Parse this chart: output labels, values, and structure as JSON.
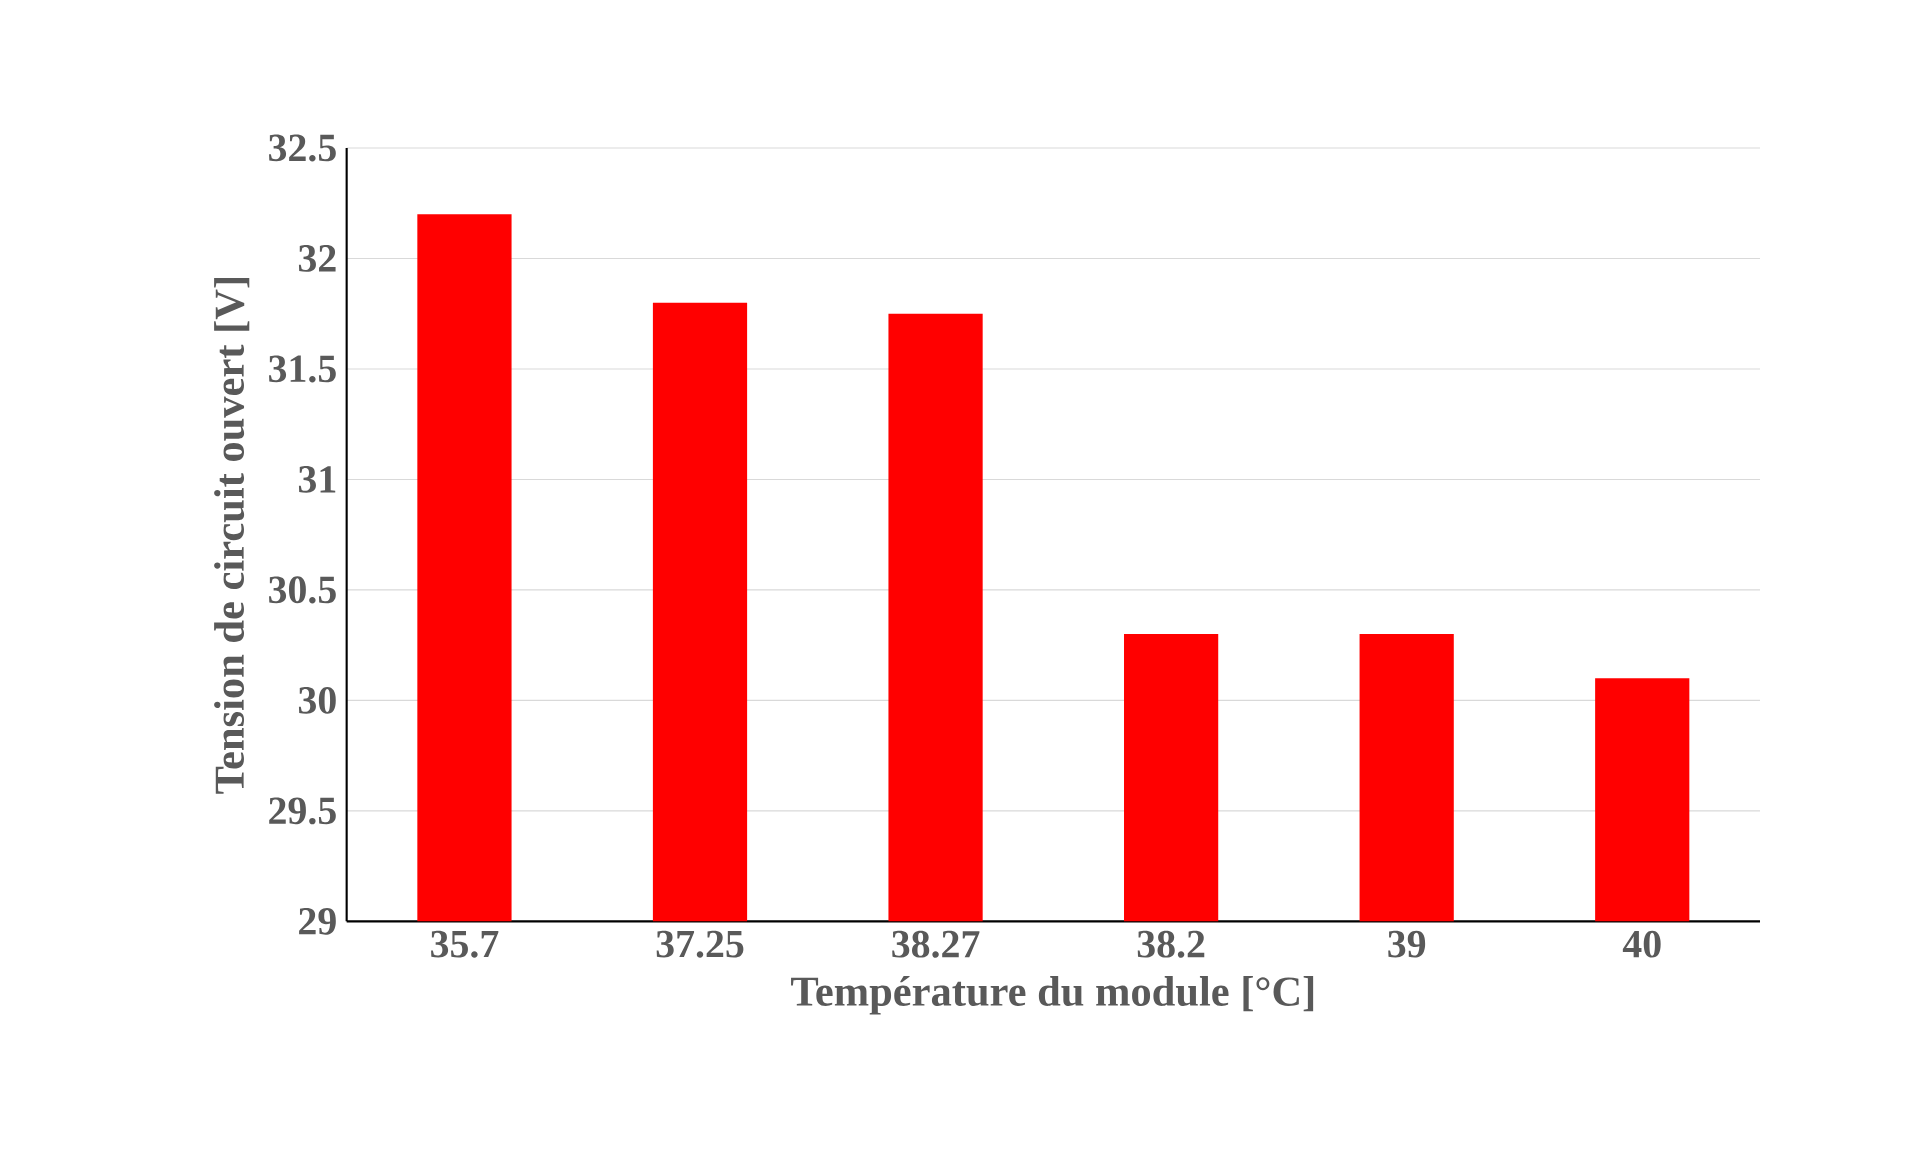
{
  "chart_data": {
    "type": "bar",
    "xlabel": "Température du module  [°C]",
    "ylabel": "Tension de circuit ouvert [V]",
    "categories": [
      "35.7",
      "37.25",
      "38.27",
      "38.2",
      "39",
      "40"
    ],
    "values": [
      32.2,
      31.8,
      31.75,
      30.3,
      30.3,
      30.1
    ],
    "color": "#ff0000",
    "ylim": [
      29,
      32.5
    ],
    "yticks": [
      29,
      29.5,
      30,
      30.5,
      31,
      31.5,
      32,
      32.5
    ],
    "grid": "y"
  }
}
